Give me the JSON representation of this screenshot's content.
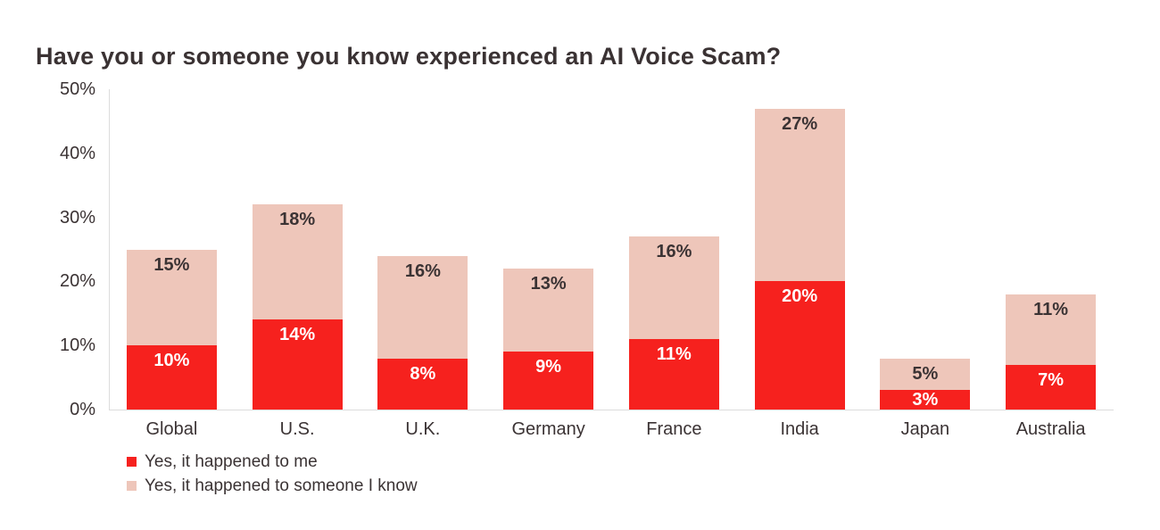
{
  "title": "Have you or someone you know experienced an AI Voice Scam?",
  "chart_data": {
    "type": "bar",
    "stacked": true,
    "title": "Have you or someone you know experienced an AI Voice Scam?",
    "categories": [
      "Global",
      "U.S.",
      "U.K.",
      "Germany",
      "France",
      "India",
      "Japan",
      "Australia"
    ],
    "series": [
      {
        "name": "Yes, it happened to me",
        "color": "#f6211e",
        "label_color": "#ffffff",
        "values": [
          10,
          14,
          8,
          9,
          11,
          20,
          3,
          7
        ]
      },
      {
        "name": "Yes, it happened to someone I know",
        "color": "#eec6ba",
        "label_color": "#3b3334",
        "values": [
          15,
          18,
          16,
          13,
          16,
          27,
          5,
          11
        ]
      }
    ],
    "value_suffix": "%",
    "ylim": [
      0,
      50
    ],
    "y_ticks": [
      {
        "label": "50%",
        "value": 50
      },
      {
        "label": "40%",
        "value": 40
      },
      {
        "label": "30%",
        "value": 30
      },
      {
        "label": "20%",
        "value": 20
      },
      {
        "label": "10%",
        "value": 10
      },
      {
        "label": "0%",
        "value": 0
      }
    ],
    "grid": false,
    "legend_position": "bottom-left",
    "xlabel": "",
    "ylabel": ""
  },
  "colors": {
    "background": "#ffffff",
    "title_text": "#3a3233",
    "axis_line": "#dcdcdc",
    "tick_text": "#3b3334"
  }
}
